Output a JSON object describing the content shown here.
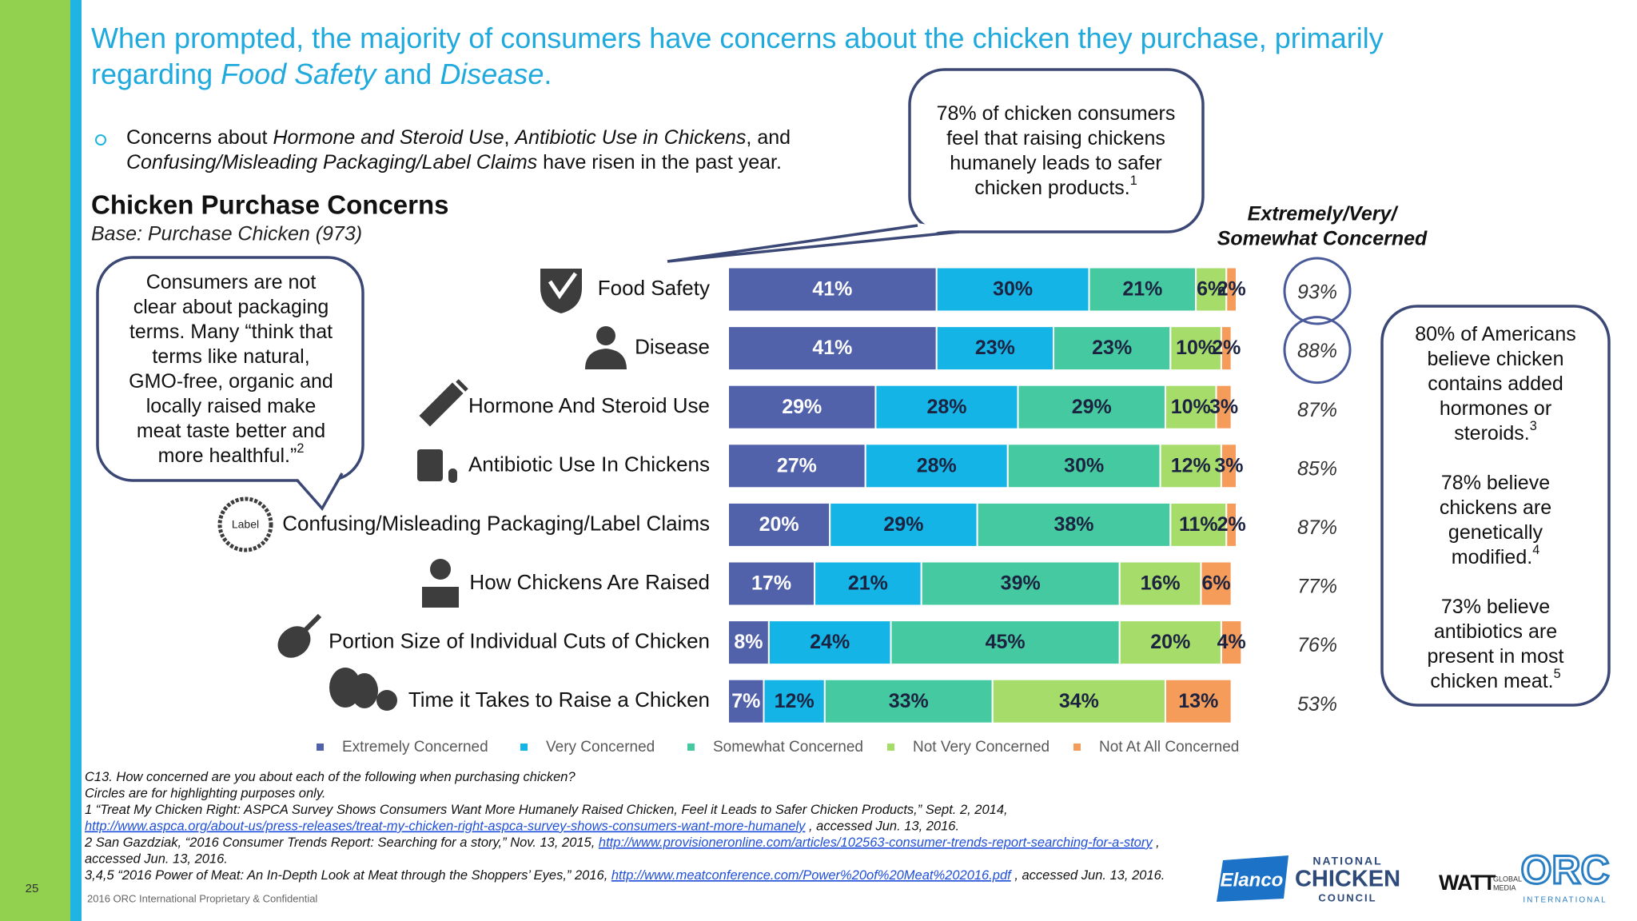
{
  "title": [
    [
      {
        "text": "When prompted, the majority of consumers have concerns about the chicken they purchase, primarily"
      }
    ],
    [
      {
        "text": "regarding "
      },
      {
        "text": "Food Safety",
        "italic": true
      },
      {
        "text": " and "
      },
      {
        "text": "Disease",
        "italic": true
      },
      {
        "text": "."
      }
    ]
  ],
  "bullet": [
    [
      {
        "text": "Concerns about "
      },
      {
        "text": "Hormone and Steroid Use",
        "italic": true
      },
      {
        "text": ", "
      },
      {
        "text": "Antibiotic Use in Chickens",
        "italic": true
      },
      {
        "text": ", and"
      }
    ],
    [
      {
        "text": "Confusing/Misleading Packaging/Label Claims",
        "italic": true
      },
      {
        "text": " have risen in the past year."
      }
    ]
  ],
  "callout_top": [
    [
      {
        "text": "78% of chicken consumers"
      }
    ],
    [
      {
        "text": "feel that raising chickens"
      }
    ],
    [
      {
        "text": "humanely leads to safer"
      }
    ],
    [
      {
        "text": "chicken products.",
        "sup": "1"
      }
    ]
  ],
  "callout_left": [
    [
      {
        "text": "Consumers are not"
      }
    ],
    [
      {
        "text": "clear about packaging"
      }
    ],
    [
      {
        "text": "terms. Many “think that"
      }
    ],
    [
      {
        "text": "terms like natural,"
      }
    ],
    [
      {
        "text": "GMO-free, organic and"
      }
    ],
    [
      {
        "text": "locally raised make"
      }
    ],
    [
      {
        "text": "meat taste better and"
      }
    ],
    [
      {
        "text": "more healthful.”",
        "sup": "2"
      }
    ]
  ],
  "callout_right": [
    [
      [
        {
          "text": "80% of Americans"
        }
      ],
      [
        {
          "text": "believe chicken"
        }
      ],
      [
        {
          "text": "contains added"
        }
      ],
      [
        {
          "text": "hormones or"
        }
      ],
      [
        {
          "text": "steroids.",
          "sup": "3"
        }
      ]
    ],
    [
      [
        {
          "text": "78% believe"
        }
      ],
      [
        {
          "text": "chickens are"
        }
      ],
      [
        {
          "text": "genetically"
        }
      ],
      [
        {
          "text": "modified.",
          "sup": "4"
        }
      ]
    ],
    [
      [
        {
          "text": "73% believe"
        }
      ],
      [
        {
          "text": "antibiotics are"
        }
      ],
      [
        {
          "text": "present in most"
        }
      ],
      [
        {
          "text": "chicken meat.",
          "sup": "5"
        }
      ]
    ]
  ],
  "icon_text": "Label",
  "chart_data": {
    "type": "stacked_barh",
    "title": "Chicken Purchase Concerns",
    "subtitle": "Base: Purchase Chicken (973)",
    "categories": [
      "Food Safety",
      "Disease",
      "Hormone And Steroid Use",
      "Antibiotic Use In Chickens",
      "Confusing/Misleading Packaging/Label Claims",
      "How Chickens Are Raised",
      "Portion Size of Individual Cuts of Chicken",
      "Time it Takes to Raise a Chicken"
    ],
    "xlim": [
      0,
      100
    ],
    "legend": "bottom",
    "series": [
      {
        "name": "Extremely Concerned",
        "color": "#5262aa",
        "label_color": "#ffffff",
        "values": [
          41,
          41,
          29,
          27,
          20,
          17,
          8,
          7
        ],
        "value_labels": [
          "41%",
          "41%",
          "29%",
          "27%",
          "20%",
          "17%",
          "8%",
          "7%"
        ]
      },
      {
        "name": "Very Concerned",
        "color": "#14b4e6",
        "label_color": "#1c2340",
        "values": [
          30,
          23,
          28,
          28,
          29,
          21,
          24,
          12
        ],
        "value_labels": [
          "30%",
          "23%",
          "28%",
          "28%",
          "29%",
          "21%",
          "24%",
          "12%"
        ]
      },
      {
        "name": "Somewhat Concerned",
        "color": "#44c9a0",
        "label_color": "#1c2340",
        "values": [
          21,
          23,
          29,
          30,
          38,
          39,
          45,
          33
        ],
        "value_labels": [
          "21%",
          "23%",
          "29%",
          "30%",
          "38%",
          "39%",
          "45%",
          "33%"
        ]
      },
      {
        "name": "Not Very Concerned",
        "color": "#a6dc6a",
        "label_color": "#1c2340",
        "values": [
          6,
          10,
          10,
          12,
          11,
          16,
          20,
          34
        ],
        "value_labels": [
          "6%",
          "10%",
          "10%",
          "12%",
          "11%",
          "16%",
          "20%",
          "34%"
        ]
      },
      {
        "name": "Not At All Concerned",
        "color": "#f59c5a",
        "label_color": "#1c2340",
        "values": [
          2,
          2,
          3,
          3,
          2,
          6,
          4,
          13
        ],
        "value_labels": [
          "2%",
          "2%",
          "3%",
          "3%",
          "2%",
          "6%",
          "4%",
          "13%"
        ]
      }
    ],
    "totals": {
      "title": [
        "Extremely/Very/",
        "Somewhat Concerned"
      ],
      "values": [
        93,
        88,
        87,
        85,
        87,
        77,
        76,
        53
      ],
      "value_labels": [
        "93%",
        "88%",
        "87%",
        "85%",
        "87%",
        "77%",
        "76%",
        "53%"
      ],
      "circled": [
        true,
        true,
        false,
        false,
        false,
        false,
        false,
        false
      ]
    }
  },
  "footnotes": [
    [
      {
        "text": "C13. How concerned are you about each of the following when purchasing chicken?"
      }
    ],
    [
      {
        "text": "Circles are for highlighting purposes only."
      }
    ],
    [
      {
        "text": "1 “Treat My Chicken Right: ASPCA Survey Shows Consumers Want More Humanely Raised Chicken, Feel it Leads to Safer Chicken Products,” Sept. 2, 2014,"
      }
    ],
    [
      {
        "link": "http://www.aspca.org/about-us/press-releases/treat-my-chicken-right-aspca-survey-shows-consumers-want-more-humanely"
      },
      {
        "text": " , accessed Jun. 13, 2016."
      }
    ],
    [
      {
        "text": "2 San Gazdziak, “2016 Consumer Trends Report: Searching for a story,” Nov. 13, 2015, "
      },
      {
        "link": "http://www.provisioneronline.com/articles/102563-consumer-trends-report-searching-for-a-story"
      },
      {
        "text": " ,"
      }
    ],
    [
      {
        "text": "accessed Jun. 13, 2016."
      }
    ],
    [
      {
        "text": "3,4,5 “2016 Power of Meat: An In-Depth Look at Meat through the Shoppers’ Eyes,” 2016, "
      },
      {
        "link": "http://www.meatconference.com/Power%20of%20Meat%202016.pdf"
      },
      {
        "text": " , accessed Jun. 13, 2016."
      }
    ]
  ],
  "page_number": "25",
  "confidential": "2016 ORC International Proprietary & Confidential",
  "logos": {
    "elanco": "Elanco",
    "ncc": [
      "NATIONAL",
      "CHICKEN",
      "COUNCIL"
    ],
    "watt": "WATT",
    "watt_sub": [
      "GLOBAL",
      "MEDIA"
    ],
    "orc": "ORC",
    "orc_sub": "INTERNATIONAL"
  }
}
